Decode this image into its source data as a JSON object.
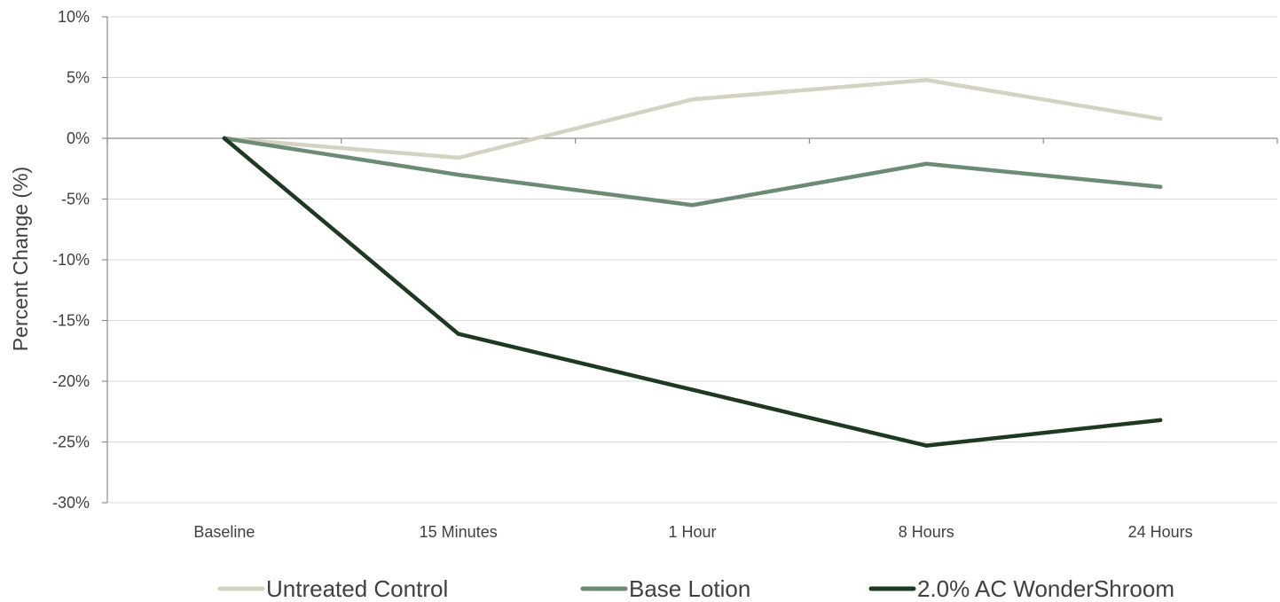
{
  "chart_data": {
    "type": "line",
    "title": "",
    "xlabel": "",
    "ylabel": "Percent Change (%)",
    "ylim": [
      -30,
      10
    ],
    "yticks": [
      10,
      5,
      0,
      -5,
      -10,
      -15,
      -20,
      -25,
      -30
    ],
    "ytick_labels": [
      "10%",
      "5%",
      "0%",
      "-5%",
      "-10%",
      "-15%",
      "-20%",
      "-25%",
      "-30%"
    ],
    "categories": [
      "Baseline",
      "15 Minutes",
      "1 Hour",
      "8 Hours",
      "24 Hours"
    ],
    "grid": "horizontal",
    "legend": "bottom",
    "series": [
      {
        "name": "Untreated Control",
        "color": "#d4d3c2",
        "values": [
          0,
          -1.6,
          3.2,
          4.8,
          1.6
        ]
      },
      {
        "name": "Base Lotion",
        "color": "#6b8b74",
        "values": [
          0,
          -3.0,
          -5.5,
          -2.1,
          -4.0
        ]
      },
      {
        "name": "2.0% AC WonderShroom",
        "color": "#1d3a20",
        "values": [
          0,
          -16.1,
          -20.7,
          -25.3,
          -23.2
        ]
      }
    ]
  },
  "colors": {
    "grid": "#d9d9d9",
    "axis": "#8c8c8c",
    "text": "#404040"
  }
}
